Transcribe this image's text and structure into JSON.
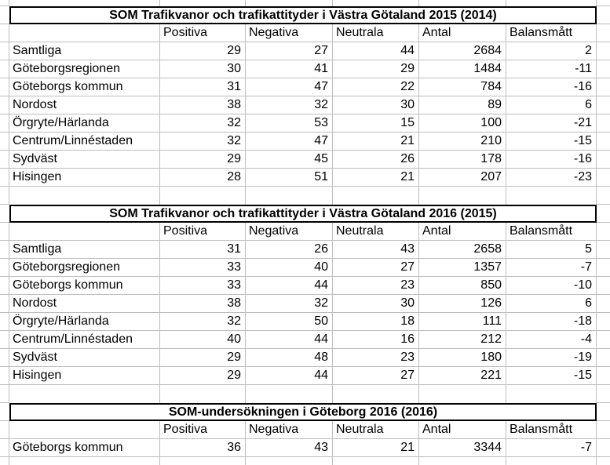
{
  "sheet": {
    "columns": [
      "Positiva",
      "Negativa",
      "Neutrala",
      "Antal",
      "Balansmått"
    ],
    "tables": [
      {
        "title": "SOM Trafikvanor och trafikattityder i Västra Götaland 2015 (2014)",
        "rows": [
          {
            "label": "Samtliga",
            "values": [
              29,
              27,
              44,
              2684,
              2
            ]
          },
          {
            "label": "Göteborgsregionen",
            "values": [
              30,
              41,
              29,
              1484,
              -11
            ]
          },
          {
            "label": "Göteborgs kommun",
            "values": [
              31,
              47,
              22,
              784,
              -16
            ]
          },
          {
            "label": "Nordost",
            "values": [
              38,
              32,
              30,
              89,
              6
            ]
          },
          {
            "label": "Örgryte/Härlanda",
            "values": [
              32,
              53,
              15,
              100,
              -21
            ]
          },
          {
            "label": "Centrum/Linnéstaden",
            "values": [
              32,
              47,
              21,
              210,
              -15
            ]
          },
          {
            "label": "Sydväst",
            "values": [
              29,
              45,
              26,
              178,
              -16
            ]
          },
          {
            "label": "Hisingen",
            "values": [
              28,
              51,
              21,
              207,
              -23
            ]
          }
        ]
      },
      {
        "title": "SOM Trafikvanor och trafikattityder i Västra Götaland 2016 (2015)",
        "rows": [
          {
            "label": "Samtliga",
            "values": [
              31,
              26,
              43,
              2658,
              5
            ]
          },
          {
            "label": "Göteborgsregionen",
            "values": [
              33,
              40,
              27,
              1357,
              -7
            ]
          },
          {
            "label": "Göteborgs kommun",
            "values": [
              33,
              44,
              23,
              850,
              -10
            ]
          },
          {
            "label": "Nordost",
            "values": [
              38,
              32,
              30,
              126,
              6
            ]
          },
          {
            "label": "Örgryte/Härlanda",
            "values": [
              32,
              50,
              18,
              111,
              -18
            ]
          },
          {
            "label": "Centrum/Linnéstaden",
            "values": [
              40,
              44,
              16,
              212,
              -4
            ]
          },
          {
            "label": "Sydväst",
            "values": [
              29,
              48,
              23,
              180,
              -19
            ]
          },
          {
            "label": "Hisingen",
            "values": [
              29,
              44,
              27,
              221,
              -15
            ]
          }
        ]
      },
      {
        "title": "SOM-undersökningen i Göteborg 2016 (2016)",
        "rows": [
          {
            "label": "Göteborgs kommun",
            "values": [
              36,
              43,
              21,
              3344,
              -7
            ]
          }
        ]
      }
    ],
    "colors": {
      "background": "#ffffff",
      "gridline": "#bdbdbd",
      "table_border": "#000000",
      "text": "#000000"
    }
  }
}
